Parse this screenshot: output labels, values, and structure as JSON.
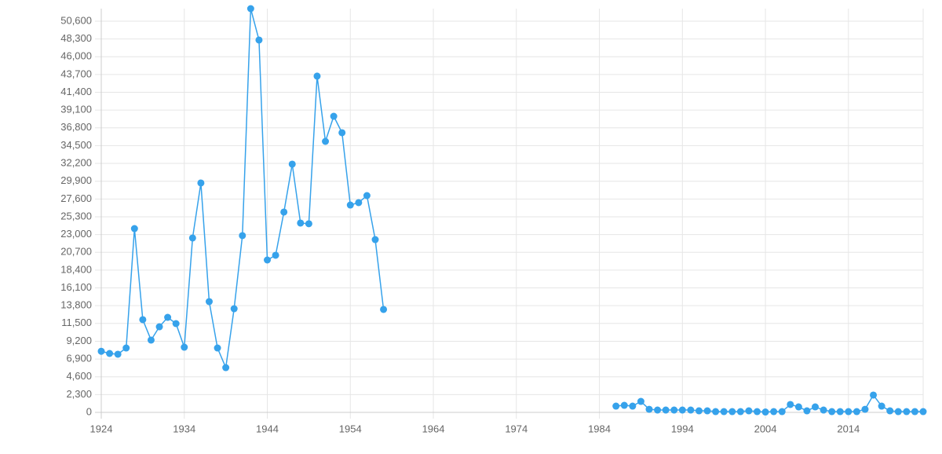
{
  "chart_data": {
    "type": "line",
    "x": [
      1924,
      1925,
      1926,
      1927,
      1928,
      1929,
      1930,
      1931,
      1932,
      1933,
      1934,
      1935,
      1936,
      1937,
      1938,
      1939,
      1940,
      1941,
      1942,
      1943,
      1944,
      1945,
      1946,
      1947,
      1948,
      1949,
      1950,
      1951,
      1952,
      1953,
      1954,
      1955,
      1956,
      1957,
      1958,
      1959,
      1960,
      1961,
      1962,
      1963,
      1964,
      1965,
      1966,
      1967,
      1968,
      1969,
      1970,
      1971,
      1972,
      1973,
      1974,
      1975,
      1976,
      1977,
      1978,
      1979,
      1980,
      1981,
      1982,
      1983,
      1984,
      1985,
      1986,
      1987,
      1988,
      1989,
      1990,
      1991,
      1992,
      1993,
      1994,
      1995,
      1996,
      1997,
      1998,
      1999,
      2000,
      2001,
      2002,
      2003,
      2004,
      2005,
      2006,
      2007,
      2008,
      2009,
      2010,
      2011,
      2012,
      2013,
      2014,
      2015,
      2016,
      2017,
      2018,
      2019,
      2020,
      2021,
      2022,
      2023
    ],
    "series": [
      {
        "color": "#36a2eb",
        "values": [
          7900,
          7620,
          7520,
          8330,
          23770,
          11990,
          9350,
          11070,
          12290,
          11480,
          8430,
          22560,
          29670,
          14330,
          8330,
          5790,
          13410,
          22860,
          52220,
          48160,
          19710,
          20320,
          25910,
          32110,
          24490,
          24400,
          43490,
          35050,
          38300,
          36170,
          26820,
          27130,
          28040,
          22350,
          13310,
          null,
          null,
          null,
          null,
          null,
          null,
          null,
          null,
          null,
          null,
          null,
          null,
          null,
          null,
          null,
          null,
          null,
          null,
          null,
          null,
          null,
          null,
          null,
          null,
          null,
          null,
          null,
          810,
          910,
          810,
          1420,
          400,
          300,
          300,
          300,
          300,
          300,
          200,
          200,
          100,
          100,
          100,
          100,
          200,
          100,
          50,
          100,
          100,
          1020,
          710,
          200,
          710,
          300,
          100,
          100,
          100,
          100,
          400,
          2240,
          810,
          200,
          100,
          100,
          100,
          100
        ]
      }
    ],
    "xlim": [
      1924,
      2023
    ],
    "xticks": [
      1924,
      1934,
      1944,
      1954,
      1964,
      1974,
      1984,
      1994,
      2004,
      2014
    ],
    "ylim": [
      0,
      52220
    ],
    "yticks": [
      0,
      {
        "value": 2300,
        "label": "2,300"
      },
      {
        "value": 4600,
        "label": "4,600"
      },
      {
        "value": 6900,
        "label": "6,900"
      },
      {
        "value": 9200,
        "label": "9,200"
      },
      {
        "value": 11500,
        "label": "11,500"
      },
      {
        "value": 13800,
        "label": "13,800"
      },
      {
        "value": 16100,
        "label": "16,100"
      },
      {
        "value": 18400,
        "label": "18,400"
      },
      {
        "value": 20700,
        "label": "20,700"
      },
      {
        "value": 23000,
        "label": "23,000"
      },
      {
        "value": 25300,
        "label": "25,300"
      },
      {
        "value": 27600,
        "label": "27,600"
      },
      {
        "value": 29900,
        "label": "29,900"
      },
      {
        "value": 32200,
        "label": "32,200"
      },
      {
        "value": 34500,
        "label": "34,500"
      },
      {
        "value": 36800,
        "label": "36,800"
      },
      {
        "value": 39100,
        "label": "39,100"
      },
      {
        "value": 41400,
        "label": "41,400"
      },
      {
        "value": 43700,
        "label": "43,700"
      },
      {
        "value": 46000,
        "label": "46,000"
      },
      {
        "value": 48300,
        "label": "48,300"
      },
      {
        "value": 50600,
        "label": "50,600"
      }
    ],
    "grid": true
  }
}
